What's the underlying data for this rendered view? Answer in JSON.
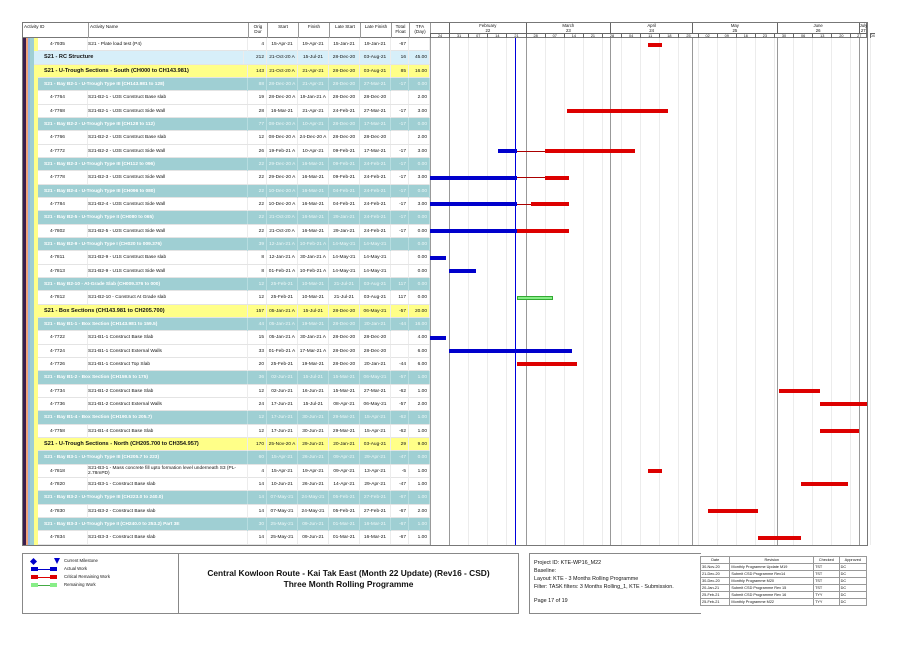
{
  "columns": {
    "id": "Activity ID",
    "name": "Activity Name",
    "dur": "Orig Dur",
    "start": "Start",
    "finish": "Finish",
    "ls": "Late Start",
    "lf": "Late Finish",
    "tf": "Total Float",
    "tfa": "TFA (Day)"
  },
  "timescale": {
    "months": [
      {
        "label": "February",
        "num": "22",
        "start": "2021-02-01"
      },
      {
        "label": "March",
        "num": "23",
        "start": "2021-03-01"
      },
      {
        "label": "April",
        "num": "24",
        "start": "2021-04-01"
      },
      {
        "label": "May",
        "num": "25",
        "start": "2021-05-01"
      },
      {
        "label": "June",
        "num": "26",
        "start": "2021-06-01"
      },
      {
        "label": "July",
        "num": "27",
        "start": "2021-07-01"
      }
    ],
    "weeks": [
      "24",
      "31",
      "07",
      "14",
      "21",
      "28",
      "07",
      "14",
      "21",
      "28",
      "04",
      "11",
      "18",
      "25",
      "02",
      "09",
      "16",
      "23",
      "30",
      "06",
      "13",
      "20",
      "27",
      "04"
    ],
    "range_start": "2021-01-25",
    "range_end": "2021-07-04",
    "data_date": "2021-02-25"
  },
  "colors": {
    "actual": "#0000cc",
    "critical": "#dd0000",
    "remaining": "#88ee88",
    "data_date": "#0000dd",
    "teal": "#9fcfd3",
    "yellow": "#ffff88",
    "lightblue": "#d7eff9"
  },
  "rows": [
    {
      "t": "act",
      "id": "4-7935",
      "name": "S21 - Plate load test (P4)",
      "dur": "4",
      "start": "15-Apr-21",
      "finish": "19-Apr-21",
      "ls": "15-Jan-21",
      "lf": "19-Jan-21",
      "tf": "-67",
      "tfa": "",
      "bars": [
        {
          "k": "critical",
          "s": "2021-04-15",
          "e": "2021-04-19"
        }
      ]
    },
    {
      "t": "l1",
      "name": "S21 - RC Structure",
      "dur": "212",
      "start": "21-Oct-20 A",
      "finish": "15-Jul-21",
      "ls": "28-Dec-20",
      "lf": "03-Aug-21",
      "tf": "16",
      "tfa": "45.00"
    },
    {
      "t": "l2",
      "name": "S21 - U-Trough Sections - South (CH000 to CH143.981)",
      "dur": "143",
      "start": "21-Oct-20 A",
      "finish": "21-Apr-21",
      "ls": "28-Dec-20",
      "lf": "03-Aug-21",
      "tf": "85",
      "tfa": "16.00"
    },
    {
      "t": "l3",
      "name": "S21 - Bay B2-1 - U-Trough Type III (CH143.981 to 128)",
      "dur": "88",
      "start": "28-Dec-20 A",
      "finish": "21-Apr-21",
      "ls": "28-Dec-20",
      "lf": "27-Mar-21",
      "tf": "-17",
      "tfa": "0.00"
    },
    {
      "t": "act",
      "id": "4-7764",
      "name": "S21-B2-1 - U3S Construct Base slab",
      "dur": "19",
      "start": "28-Dec-20 A",
      "finish": "19-Jan-21 A",
      "ls": "28-Dec-20",
      "lf": "28-Dec-20",
      "tf": "",
      "tfa": "2.00"
    },
    {
      "t": "act",
      "id": "4-7768",
      "name": "S21-B2-1 - U3S Construct Side Wall",
      "dur": "28",
      "start": "16-Mar-21",
      "finish": "21-Apr-21",
      "ls": "24-Feb-21",
      "lf": "27-Mar-21",
      "tf": "-17",
      "tfa": "3.00",
      "bars": [
        {
          "k": "critical",
          "s": "2021-03-16",
          "e": "2021-04-21"
        }
      ]
    },
    {
      "t": "l3",
      "name": "S21 - Bay B2-2 - U-Trough Type III (CH128 to 112)",
      "dur": "77",
      "start": "08-Dec-20 A",
      "finish": "10-Apr-21",
      "ls": "28-Dec-20",
      "lf": "17-Mar-21",
      "tf": "-17",
      "tfa": "0.00"
    },
    {
      "t": "act",
      "id": "4-7766",
      "name": "S21-B2-2 - U3S Construct Base slab",
      "dur": "12",
      "start": "08-Dec-20 A",
      "finish": "24-Dec-20 A",
      "ls": "28-Dec-20",
      "lf": "28-Dec-20",
      "tf": "",
      "tfa": "2.00"
    },
    {
      "t": "act",
      "id": "4-7772",
      "name": "S21-B2-2 - U3S Construct Side Wall",
      "dur": "26",
      "start": "19-Feb-21 A",
      "finish": "10-Apr-21",
      "ls": "09-Feb-21",
      "lf": "17-Mar-21",
      "tf": "-17",
      "tfa": "3.00",
      "bars": [
        {
          "k": "actual",
          "s": "2021-02-19",
          "e": "2021-02-25"
        },
        {
          "k": "link",
          "s": "2021-02-26",
          "e": "2021-03-08"
        },
        {
          "k": "critical",
          "s": "2021-03-08",
          "e": "2021-04-09"
        }
      ]
    },
    {
      "t": "l3",
      "name": "S21 - Bay B2-3 - U-Trough Type III (CH112 to 096)",
      "dur": "22",
      "start": "29-Dec-20 A",
      "finish": "16-Mar-21",
      "ls": "09-Feb-21",
      "lf": "24-Feb-21",
      "tf": "-17",
      "tfa": "0.00"
    },
    {
      "t": "act",
      "id": "4-7778",
      "name": "S21-B2-3 - U3S Construct Side Wall",
      "dur": "22",
      "start": "29-Dec-20 A",
      "finish": "16-Mar-21",
      "ls": "09-Feb-21",
      "lf": "24-Feb-21",
      "tf": "-17",
      "tfa": "3.00",
      "bars": [
        {
          "k": "actual",
          "s": "2021-01-25",
          "e": "2021-02-25"
        },
        {
          "k": "link",
          "s": "2021-02-26",
          "e": "2021-03-08"
        },
        {
          "k": "critical",
          "s": "2021-03-08",
          "e": "2021-03-16"
        }
      ]
    },
    {
      "t": "l3",
      "name": "S21 - Bay B2-4 - U-Trough Type III (CH096 to 080)",
      "dur": "22",
      "start": "10-Dec-20 A",
      "finish": "16-Mar-21",
      "ls": "04-Feb-21",
      "lf": "24-Feb-21",
      "tf": "-17",
      "tfa": "0.00"
    },
    {
      "t": "act",
      "id": "4-7784",
      "name": "S21-B2-4 - U3S Construct Side Wall",
      "dur": "22",
      "start": "10-Dec-20 A",
      "finish": "16-Mar-21",
      "ls": "04-Feb-21",
      "lf": "24-Feb-21",
      "tf": "-17",
      "tfa": "3.00",
      "bars": [
        {
          "k": "actual",
          "s": "2021-01-25",
          "e": "2021-02-25"
        },
        {
          "k": "link",
          "s": "2021-02-26",
          "e": "2021-03-03"
        },
        {
          "k": "critical",
          "s": "2021-03-03",
          "e": "2021-03-16"
        }
      ]
    },
    {
      "t": "l3",
      "name": "S21 - Bay B2-5 - U-Trough Type II (CH080 to 065)",
      "dur": "22",
      "start": "21-Oct-20 A",
      "finish": "16-Mar-21",
      "ls": "29-Jan-21",
      "lf": "24-Feb-21",
      "tf": "-17",
      "tfa": "0.00"
    },
    {
      "t": "act",
      "id": "4-7802",
      "name": "S21-B2-5 - U2S Construct Side Wall",
      "dur": "22",
      "start": "21-Oct-20 A",
      "finish": "16-Mar-21",
      "ls": "29-Jan-21",
      "lf": "24-Feb-21",
      "tf": "-17",
      "tfa": "0.00",
      "bars": [
        {
          "k": "actual",
          "s": "2021-01-25",
          "e": "2021-02-25"
        },
        {
          "k": "critical",
          "s": "2021-02-26",
          "e": "2021-03-16"
        }
      ]
    },
    {
      "t": "l3",
      "name": "S21 - Bay B2-9 - U-Trough Type I (CH020 to 009.376)",
      "dur": "39",
      "start": "12-Jan-21 A",
      "finish": "10-Feb-21 A",
      "ls": "14-May-21",
      "lf": "14-May-21",
      "tf": "",
      "tfa": "0.00"
    },
    {
      "t": "act",
      "id": "4-7811",
      "name": "S21-B2-9 - U1S Construct Base slab",
      "dur": "8",
      "start": "12-Jan-21 A",
      "finish": "30-Jan-21 A",
      "ls": "14-May-21",
      "lf": "14-May-21",
      "tf": "",
      "tfa": "0.00",
      "bars": [
        {
          "k": "actual",
          "s": "2021-01-25",
          "e": "2021-01-30"
        }
      ]
    },
    {
      "t": "act",
      "id": "4-7813",
      "name": "S21-B2-9 - U1S Construct Side Wall",
      "dur": "8",
      "start": "01-Feb-21 A",
      "finish": "10-Feb-21 A",
      "ls": "14-May-21",
      "lf": "14-May-21",
      "tf": "",
      "tfa": "0.00",
      "bars": [
        {
          "k": "actual",
          "s": "2021-02-01",
          "e": "2021-02-10"
        }
      ]
    },
    {
      "t": "l3",
      "name": "S21 - Bay B2-10 - At-Grade Slab (CH009.376 to 000)",
      "dur": "12",
      "start": "25-Feb-21",
      "finish": "10-Mar-21",
      "ls": "21-Jul-21",
      "lf": "03-Aug-21",
      "tf": "117",
      "tfa": "0.00"
    },
    {
      "t": "act",
      "id": "4-7812",
      "name": "S21-B2-10 - Construct At Grade slab",
      "dur": "12",
      "start": "25-Feb-21",
      "finish": "10-Mar-21",
      "ls": "21-Jul-21",
      "lf": "03-Aug-21",
      "tf": "117",
      "tfa": "0.00",
      "bars": [
        {
          "k": "remaining",
          "s": "2021-02-26",
          "e": "2021-03-10"
        }
      ]
    },
    {
      "t": "l2",
      "name": "S21 - Box Sections (CH143.981 to CH205.700)",
      "dur": "157",
      "start": "05-Jan-21 A",
      "finish": "15-Jul-21",
      "ls": "28-Dec-20",
      "lf": "06-May-21",
      "tf": "-57",
      "tfa": "20.00"
    },
    {
      "t": "l3",
      "name": "S21 - Bay B1-1 - Box Section (CH143.981 to 159.5)",
      "dur": "44",
      "start": "05-Jan-21 A",
      "finish": "19-Mar-21",
      "ls": "28-Dec-20",
      "lf": "20-Jan-21",
      "tf": "-44",
      "tfa": "16.00"
    },
    {
      "t": "act",
      "id": "4-7722",
      "name": "S21-B1-1 Construct Base Slab",
      "dur": "15",
      "start": "05-Jan-21 A",
      "finish": "30-Jan-21 A",
      "ls": "28-Dec-20",
      "lf": "28-Dec-20",
      "tf": "",
      "tfa": "4.00",
      "bars": [
        {
          "k": "actual",
          "s": "2021-01-25",
          "e": "2021-01-30"
        }
      ]
    },
    {
      "t": "act",
      "id": "4-7724",
      "name": "S21-B1-1 Construct External Walls",
      "dur": "33",
      "start": "01-Feb-21 A",
      "finish": "17-Mar-21 A",
      "ls": "28-Dec-20",
      "lf": "28-Dec-20",
      "tf": "",
      "tfa": "6.00",
      "bars": [
        {
          "k": "actual",
          "s": "2021-02-01",
          "e": "2021-03-17"
        }
      ]
    },
    {
      "t": "act",
      "id": "4-7726",
      "name": "S21-B1-1 Construct Top Slab",
      "dur": "20",
      "start": "25-Feb-21",
      "finish": "19-Mar-21",
      "ls": "28-Dec-20",
      "lf": "20-Jan-21",
      "tf": "-44",
      "tfa": "6.00",
      "bars": [
        {
          "k": "critical",
          "s": "2021-02-26",
          "e": "2021-03-19"
        }
      ]
    },
    {
      "t": "l3",
      "name": "S21 - Bay B1-2 - Box Section (CH159.5 to 175)",
      "dur": "36",
      "start": "02-Jun-21",
      "finish": "15-Jul-21",
      "ls": "15-Mar-21",
      "lf": "06-May-21",
      "tf": "-57",
      "tfa": "1.00"
    },
    {
      "t": "act",
      "id": "4-7734",
      "name": "S21-B1-2 Construct Base Slab",
      "dur": "12",
      "start": "02-Jun-21",
      "finish": "16-Jun-21",
      "ls": "15-Mar-21",
      "lf": "27-Mar-21",
      "tf": "-62",
      "tfa": "1.00",
      "bars": [
        {
          "k": "critical",
          "s": "2021-06-02",
          "e": "2021-06-16"
        }
      ]
    },
    {
      "t": "act",
      "id": "4-7736",
      "name": "S21-B1-2 Construct External Walls",
      "dur": "24",
      "start": "17-Jun-21",
      "finish": "15-Jul-21",
      "ls": "08-Apr-21",
      "lf": "06-May-21",
      "tf": "-57",
      "tfa": "2.00",
      "bars": [
        {
          "k": "critical",
          "s": "2021-06-17",
          "e": "2021-07-15"
        }
      ]
    },
    {
      "t": "l3",
      "name": "S21 - Bay B1-4 - Box Section (CH190.5 to 205.7)",
      "dur": "12",
      "start": "17-Jun-21",
      "finish": "30-Jun-21",
      "ls": "29-Mar-21",
      "lf": "15-Apr-21",
      "tf": "-62",
      "tfa": "1.00"
    },
    {
      "t": "act",
      "id": "4-7758",
      "name": "S21-B1-4 Construct Base Slab",
      "dur": "12",
      "start": "17-Jun-21",
      "finish": "30-Jun-21",
      "ls": "29-Mar-21",
      "lf": "15-Apr-21",
      "tf": "-62",
      "tfa": "1.00",
      "bars": [
        {
          "k": "critical",
          "s": "2021-06-17",
          "e": "2021-06-30"
        }
      ]
    },
    {
      "t": "l2",
      "name": "S21 - U-Trough Sections - North (CH205.700 to CH354.957)",
      "dur": "170",
      "start": "25-Nov-20 A",
      "finish": "29-Jun-21",
      "ls": "20-Jan-21",
      "lf": "03-Aug-21",
      "tf": "29",
      "tfa": "9.00"
    },
    {
      "t": "l3",
      "name": "S21 - Bay B3-1 - U-Trough Type III (CH205.7 to 223)",
      "dur": "60",
      "start": "15-Apr-21",
      "finish": "26-Jun-21",
      "ls": "09-Apr-21",
      "lf": "29-Apr-21",
      "tf": "-47",
      "tfa": "0.00"
    },
    {
      "t": "act",
      "id": "4-7818",
      "name": "S21-B3-1 - Mass concrete fill upto formation level underneath S3 (PL-2.78mPD)",
      "dur": "4",
      "start": "15-Apr-21",
      "finish": "19-Apr-21",
      "ls": "09-Apr-21",
      "lf": "13-Apr-21",
      "tf": "-5",
      "tfa": "1.00",
      "bars": [
        {
          "k": "critical",
          "s": "2021-04-15",
          "e": "2021-04-19"
        }
      ]
    },
    {
      "t": "act",
      "id": "4-7820",
      "name": "S21-B3-1 - Construct Base slab",
      "dur": "14",
      "start": "10-Jun-21",
      "finish": "26-Jun-21",
      "ls": "14-Apr-21",
      "lf": "29-Apr-21",
      "tf": "-47",
      "tfa": "1.00",
      "bars": [
        {
          "k": "critical",
          "s": "2021-06-10",
          "e": "2021-06-26"
        }
      ]
    },
    {
      "t": "l3",
      "name": "S21 - Bay B3-2 - U-Trough Type III (CH223.0 to 240.0)",
      "dur": "14",
      "start": "07-May-21",
      "finish": "24-May-21",
      "ls": "05-Feb-21",
      "lf": "27-Feb-21",
      "tf": "-67",
      "tfa": "1.00"
    },
    {
      "t": "act",
      "id": "4-7830",
      "name": "S21-B3-2 - Construct Base slab",
      "dur": "14",
      "start": "07-May-21",
      "finish": "24-May-21",
      "ls": "05-Feb-21",
      "lf": "27-Feb-21",
      "tf": "-67",
      "tfa": "2.00",
      "bars": [
        {
          "k": "critical",
          "s": "2021-05-07",
          "e": "2021-05-24"
        }
      ]
    },
    {
      "t": "l3",
      "name": "S21 - Bay B3-3 - U-Trough Type II (CH240.0 to 253.2) Part 3E",
      "dur": "30",
      "start": "25-May-21",
      "finish": "09-Jun-21",
      "ls": "01-Mar-21",
      "lf": "16-Mar-21",
      "tf": "-67",
      "tfa": "1.00"
    },
    {
      "t": "act",
      "id": "4-7834",
      "name": "S21-B3-3 - Construct Base slab",
      "dur": "14",
      "start": "25-May-21",
      "finish": "09-Jun-21",
      "ls": "01-Mar-21",
      "lf": "16-Mar-21",
      "tf": "-67",
      "tfa": "1.00",
      "bars": [
        {
          "k": "critical",
          "s": "2021-05-25",
          "e": "2021-06-09"
        }
      ]
    }
  ],
  "legend": {
    "milestone": "Current Milestone",
    "actual": "Actual Work",
    "critical": "Critical Remaining Work",
    "remaining": "Remaining Work"
  },
  "title": {
    "line1": "Central Kowloon Route - Kai Tak East (Month 22 Update) (Rev16 - CSD)",
    "line2": "Three Month Rolling Programme"
  },
  "project": {
    "id": "Project ID: KTE-WP16_M22",
    "baseline": "Baseline:",
    "layout": "Layout: KTE - 3 Months Rolling Programme",
    "filter": "Filter: TASK filters: 3 Months Rolling_1, KTE - Submission.",
    "page": "Page 17 of 19"
  },
  "revisions": {
    "headers": [
      "Date",
      "Revision",
      "Checked",
      "Approved"
    ],
    "rows": [
      [
        "30-Nov-20",
        "Monthly Programme Update M19",
        "TST",
        "DC"
      ],
      [
        "21-Dec-20",
        "Submit CSD Programme Rev14",
        "TST",
        "DC"
      ],
      [
        "30-Dec-20",
        "Monthly Programme M20",
        "TST",
        "DC"
      ],
      [
        "20-Jan-21",
        "Submit CSD Programme Rev 15",
        "TST",
        "DC"
      ],
      [
        "25-Feb-21",
        "Submit CSD Programme Rev 16",
        "TYY",
        "DC"
      ],
      [
        "25-Feb-21",
        "Monthly Programme M22",
        "TYY",
        "DC"
      ]
    ]
  }
}
